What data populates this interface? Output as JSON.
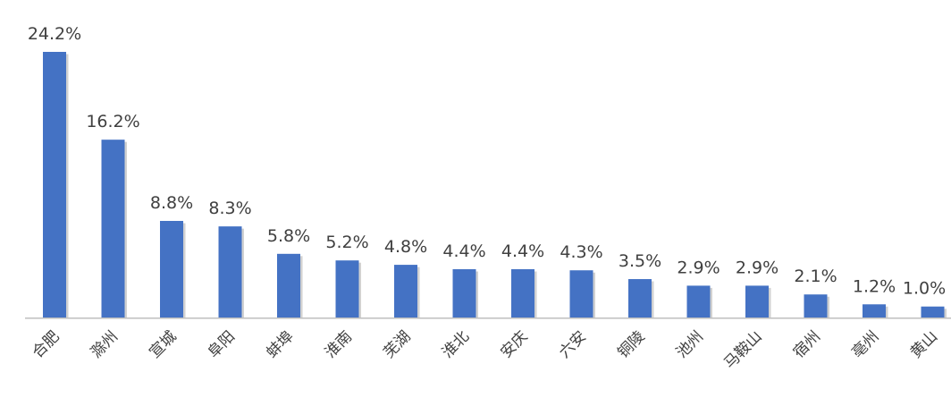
{
  "chart_data": {
    "type": "bar",
    "title": "",
    "xlabel": "",
    "ylabel": "",
    "categories": [
      "合肥",
      "滁州",
      "宣城",
      "阜阳",
      "蚌埠",
      "淮南",
      "芜湖",
      "淮北",
      "安庆",
      "六安",
      "铜陵",
      "池州",
      "马鞍山",
      "宿州",
      "亳州",
      "黄山"
    ],
    "values": [
      24.2,
      16.2,
      8.8,
      8.3,
      5.8,
      5.2,
      4.8,
      4.4,
      4.4,
      4.3,
      3.5,
      2.9,
      2.9,
      2.1,
      1.2,
      1.0
    ],
    "value_labels": [
      "24.2%",
      "16.2%",
      "8.8%",
      "8.3%",
      "5.8%",
      "5.2%",
      "4.8%",
      "4.4%",
      "4.4%",
      "4.3%",
      "3.5%",
      "2.9%",
      "2.9%",
      "2.1%",
      "1.2%",
      "1.0%"
    ],
    "ylim": [
      0,
      24.2
    ],
    "grid": false,
    "legend": "none",
    "bar_color": "#4472c4"
  }
}
